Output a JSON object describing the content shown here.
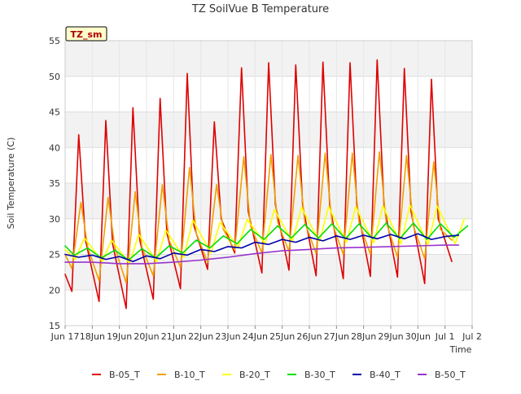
{
  "chart_data": {
    "type": "line",
    "title": "TZ SoilVue B Temperature",
    "xlabel": "Time",
    "ylabel": "Soil Temperature (C)",
    "ylim": [
      15,
      55
    ],
    "xlim": [
      "Jun 17",
      "Jul 2"
    ],
    "yticks": [
      15,
      20,
      25,
      30,
      35,
      40,
      45,
      50,
      55
    ],
    "xticks": [
      "Jun 17",
      "Jun 18",
      "Jun 19",
      "Jun 20",
      "Jun 21",
      "Jun 22",
      "Jun 23",
      "Jun 24",
      "Jun 25",
      "Jun 26",
      "Jun 27",
      "Jun 28",
      "Jun 29",
      "Jun 30",
      "Jul 1",
      "Jul 2"
    ],
    "xtick_labels": [
      "Jun 17",
      "18Jun",
      "19Jun",
      "20Jun",
      "21Jun",
      "22Jun",
      "23Jun",
      "24Jun",
      "25Jun",
      "26Jun",
      "27Jun",
      "28Jun",
      "29Jun",
      "30Jun",
      "Jul 1",
      "Jul 2"
    ],
    "grid": true,
    "banded_background": true,
    "legend": "bottom",
    "station_label": "TZ_sm",
    "series": [
      {
        "name": "B-05_T",
        "color": "#dd0000",
        "x": [
          "Jun 17 00:00",
          "Jun 17 06:00",
          "Jun 17 12:00",
          "Jun 17 18:00",
          "Jun 18 06:00",
          "Jun 18 12:00",
          "Jun 18 18:00",
          "Jun 19 06:00",
          "Jun 19 12:00",
          "Jun 19 18:00",
          "Jun 20 06:00",
          "Jun 20 12:00",
          "Jun 20 18:00",
          "Jun 21 06:00",
          "Jun 21 12:00",
          "Jun 21 18:00",
          "Jun 22 06:00",
          "Jun 22 12:00",
          "Jun 22 18:00",
          "Jun 23 06:00",
          "Jun 23 12:00",
          "Jun 23 18:00",
          "Jun 24 06:00",
          "Jun 24 12:00",
          "Jun 24 18:00",
          "Jun 25 06:00",
          "Jun 25 12:00",
          "Jun 25 18:00",
          "Jun 26 06:00",
          "Jun 26 12:00",
          "Jun 26 18:00",
          "Jun 27 06:00",
          "Jun 27 12:00",
          "Jun 27 18:00",
          "Jun 28 06:00",
          "Jun 28 12:00",
          "Jun 28 18:00",
          "Jun 29 06:00",
          "Jun 29 12:00",
          "Jun 29 18:00",
          "Jun 30 06:00",
          "Jun 30 12:00",
          "Jun 30 18:00",
          "Jul 1 06:00",
          "Jul 1 12:00",
          "Jul 1 18:00"
        ],
        "values": [
          22.2,
          19.8,
          41.8,
          27.0,
          18.4,
          43.8,
          26.5,
          17.4,
          45.6,
          27.0,
          18.7,
          46.9,
          28.0,
          20.2,
          50.4,
          29.0,
          22.9,
          43.6,
          30.0,
          25.2,
          51.2,
          31.0,
          22.4,
          51.9,
          32.0,
          22.8,
          51.6,
          32.0,
          22.0,
          52.0,
          32.0,
          21.6,
          51.9,
          32.0,
          21.9,
          52.3,
          32.0,
          21.8,
          51.1,
          31.0,
          20.9,
          49.6,
          30.0,
          24.0,
          null,
          null
        ]
      },
      {
        "name": "B-10_T",
        "color": "#f0a000",
        "x": [
          "Jun 17 00:00",
          "Jun 17 06:00",
          "Jun 17 14:00",
          "Jun 17 20:00",
          "Jun 18 06:00",
          "Jun 18 14:00",
          "Jun 18 20:00",
          "Jun 19 06:00",
          "Jun 19 14:00",
          "Jun 19 20:00",
          "Jun 20 06:00",
          "Jun 20 14:00",
          "Jun 20 20:00",
          "Jun 21 06:00",
          "Jun 21 14:00",
          "Jun 21 20:00",
          "Jun 22 06:00",
          "Jun 22 14:00",
          "Jun 22 20:00",
          "Jun 23 06:00",
          "Jun 23 14:00",
          "Jun 23 20:00",
          "Jun 24 06:00",
          "Jun 24 14:00",
          "Jun 24 20:00",
          "Jun 25 06:00",
          "Jun 25 14:00",
          "Jun 25 20:00",
          "Jun 26 06:00",
          "Jun 26 14:00",
          "Jun 26 20:00",
          "Jun 27 06:00",
          "Jun 27 14:00",
          "Jun 27 20:00",
          "Jun 28 06:00",
          "Jun 28 14:00",
          "Jun 28 20:00",
          "Jun 29 06:00",
          "Jun 29 14:00",
          "Jun 29 20:00",
          "Jun 30 06:00",
          "Jun 30 14:00",
          "Jun 30 20:00",
          "Jul 1 06:00",
          "Jul 1 14:00",
          "Jul 1 20:00"
        ],
        "values": [
          25.0,
          23.0,
          32.3,
          26.0,
          21.3,
          33.0,
          26.0,
          21.0,
          33.8,
          26.0,
          22.0,
          34.8,
          27.0,
          23.2,
          37.2,
          28.0,
          23.9,
          34.8,
          28.5,
          25.6,
          38.7,
          29.0,
          25.2,
          39.0,
          29.5,
          25.4,
          38.9,
          29.5,
          25.1,
          39.2,
          29.5,
          25.0,
          39.2,
          29.5,
          25.0,
          39.4,
          29.5,
          24.6,
          38.9,
          29.0,
          24.4,
          38.0,
          28.5,
          27.0,
          null,
          null
        ]
      },
      {
        "name": "B-20_T",
        "color": "#ffff00",
        "x": [
          "Jun 17 00:00",
          "Jun 17 09:00",
          "Jun 17 17:00",
          "Jun 18 09:00",
          "Jun 18 17:00",
          "Jun 19 09:00",
          "Jun 19 17:00",
          "Jun 20 09:00",
          "Jun 20 17:00",
          "Jun 21 09:00",
          "Jun 21 17:00",
          "Jun 22 09:00",
          "Jun 22 17:00",
          "Jun 23 09:00",
          "Jun 23 17:00",
          "Jun 24 09:00",
          "Jun 24 17:00",
          "Jun 25 09:00",
          "Jun 25 17:00",
          "Jun 26 09:00",
          "Jun 26 17:00",
          "Jun 27 09:00",
          "Jun 27 17:00",
          "Jun 28 09:00",
          "Jun 28 17:00",
          "Jun 29 09:00",
          "Jun 29 17:00",
          "Jun 30 09:00",
          "Jun 30 17:00",
          "Jul 1 09:00",
          "Jul 1 17:00"
        ],
        "values": [
          25.7,
          24.3,
          27.3,
          24.0,
          27.0,
          23.7,
          27.8,
          24.0,
          28.4,
          24.6,
          29.8,
          25.2,
          29.5,
          26.0,
          29.9,
          26.5,
          31.3,
          26.8,
          31.6,
          26.8,
          31.7,
          26.7,
          31.7,
          26.6,
          31.8,
          26.5,
          31.9,
          26.4,
          31.8,
          26.5,
          30.0
        ]
      },
      {
        "name": "B-30_T",
        "color": "#00dd00",
        "x": [
          "Jun 17 00:00",
          "Jun 17 08:00",
          "Jun 17 20:00",
          "Jun 18 08:00",
          "Jun 18 20:00",
          "Jun 19 08:00",
          "Jun 19 20:00",
          "Jun 20 08:00",
          "Jun 20 20:00",
          "Jun 21 08:00",
          "Jun 21 20:00",
          "Jun 22 08:00",
          "Jun 22 20:00",
          "Jun 23 08:00",
          "Jun 23 20:00",
          "Jun 24 08:00",
          "Jun 24 20:00",
          "Jun 25 08:00",
          "Jun 25 20:00",
          "Jun 26 08:00",
          "Jun 26 20:00",
          "Jun 27 08:00",
          "Jun 27 20:00",
          "Jun 28 08:00",
          "Jun 28 20:00",
          "Jun 29 08:00",
          "Jun 29 20:00",
          "Jun 30 08:00",
          "Jun 30 20:00",
          "Jul 1 08:00",
          "Jul 1 20:00"
        ],
        "values": [
          26.2,
          24.9,
          25.9,
          24.5,
          25.6,
          24.2,
          25.8,
          24.5,
          26.2,
          25.2,
          27.0,
          25.9,
          27.6,
          26.5,
          28.5,
          27.1,
          29.0,
          27.3,
          29.2,
          27.3,
          29.3,
          27.2,
          29.3,
          27.2,
          29.4,
          27.2,
          29.4,
          27.1,
          29.3,
          27.4,
          29.0
        ]
      },
      {
        "name": "B-40_T",
        "color": "#0000aa",
        "x": [
          "Jun 17 00:00",
          "Jun 17 12:00",
          "Jun 18 00:00",
          "Jun 18 12:00",
          "Jun 19 00:00",
          "Jun 19 12:00",
          "Jun 20 00:00",
          "Jun 20 12:00",
          "Jun 21 00:00",
          "Jun 21 12:00",
          "Jun 22 00:00",
          "Jun 22 12:00",
          "Jun 23 00:00",
          "Jun 23 12:00",
          "Jun 24 00:00",
          "Jun 24 12:00",
          "Jun 25 00:00",
          "Jun 25 12:00",
          "Jun 26 00:00",
          "Jun 26 12:00",
          "Jun 27 00:00",
          "Jun 27 12:00",
          "Jun 28 00:00",
          "Jun 28 12:00",
          "Jun 29 00:00",
          "Jun 29 12:00",
          "Jun 30 00:00",
          "Jun 30 12:00",
          "Jul 1 00:00",
          "Jul 1 12:00"
        ],
        "values": [
          25.0,
          24.6,
          24.9,
          24.3,
          24.7,
          24.0,
          24.8,
          24.4,
          25.2,
          24.9,
          25.7,
          25.4,
          26.1,
          25.9,
          26.7,
          26.4,
          27.1,
          26.7,
          27.4,
          26.9,
          27.6,
          27.1,
          27.7,
          27.2,
          27.8,
          27.2,
          27.9,
          27.1,
          27.5,
          27.7
        ]
      },
      {
        "name": "B-50_T",
        "color": "#9933cc",
        "x": [
          "Jun 17 00:00",
          "Jun 18 00:00",
          "Jun 19 00:00",
          "Jun 20 00:00",
          "Jun 21 00:00",
          "Jun 22 00:00",
          "Jun 23 00:00",
          "Jun 24 00:00",
          "Jun 25 00:00",
          "Jun 26 00:00",
          "Jun 27 00:00",
          "Jun 28 00:00",
          "Jun 29 00:00",
          "Jun 30 00:00",
          "Jul 1 00:00",
          "Jul 1 12:00"
        ],
        "values": [
          23.9,
          23.9,
          23.7,
          23.7,
          23.9,
          24.2,
          24.6,
          25.1,
          25.5,
          25.7,
          25.9,
          26.0,
          26.1,
          26.2,
          26.3,
          26.3
        ]
      }
    ]
  }
}
